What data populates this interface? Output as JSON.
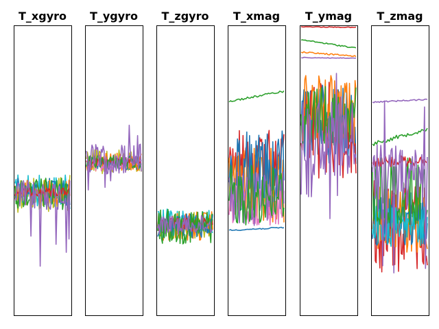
{
  "chart_data": [
    {
      "type": "line",
      "title": "T_xgyro",
      "ylim": [
        0,
        1
      ]
    },
    {
      "type": "line",
      "title": "T_ygyro",
      "ylim": [
        0,
        1
      ]
    },
    {
      "type": "line",
      "title": "T_zgyro",
      "ylim": [
        0,
        1
      ]
    },
    {
      "type": "line",
      "title": "T_xmag",
      "ylim": [
        0,
        1
      ]
    },
    {
      "type": "line",
      "title": "T_ymag",
      "ylim": [
        0,
        1
      ]
    },
    {
      "type": "line",
      "title": "T_zmag",
      "ylim": [
        0,
        1
      ]
    }
  ],
  "series_colors": [
    "#1f77b4",
    "#ff7f0e",
    "#2ca02c",
    "#d62728",
    "#9467bd",
    "#e377c2",
    "#bcbd22",
    "#17becf"
  ]
}
